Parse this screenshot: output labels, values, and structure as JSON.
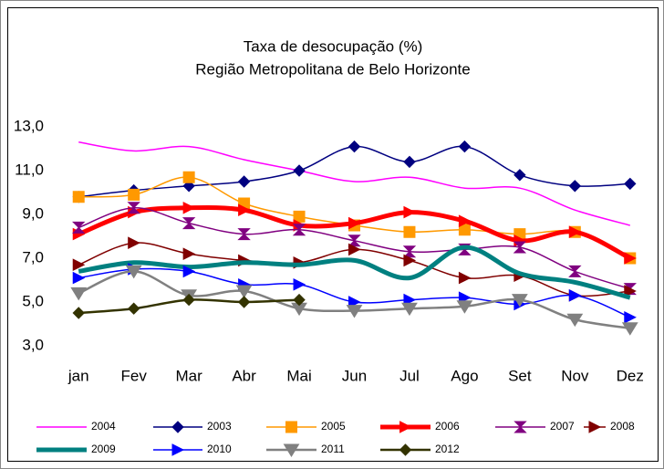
{
  "chart_data": {
    "type": "line",
    "title": "Taxa de desocupação (%)",
    "subtitle": "Região Metropolitana de Belo Horizonte",
    "categories": [
      "jan",
      "Fev",
      "Mar",
      "Abr",
      "Mai",
      "Jun",
      "Jul",
      "Ago",
      "Set",
      "Nov",
      "Dez"
    ],
    "ylim": [
      3,
      13
    ],
    "yticks": [
      {
        "value": 3,
        "label": "3,0"
      },
      {
        "value": 5,
        "label": "5,0"
      },
      {
        "value": 7,
        "label": "7,0"
      },
      {
        "value": 9,
        "label": "9,0"
      },
      {
        "value": 11,
        "label": "11,0"
      },
      {
        "value": 13,
        "label": "13,0"
      }
    ],
    "grid": false,
    "smooth": true,
    "legend": "bottom",
    "series": [
      {
        "name": "2004",
        "color": "#ff00ff",
        "marker": "none",
        "width": 1.5,
        "values": [
          12.3,
          11.9,
          12.1,
          11.5,
          11.0,
          10.5,
          10.7,
          10.2,
          10.2,
          9.2,
          8.5
        ]
      },
      {
        "name": "2003",
        "color": "#000080",
        "marker": "diamond",
        "width": 1.5,
        "values": [
          9.8,
          10.1,
          10.3,
          10.5,
          11.0,
          12.1,
          11.4,
          12.1,
          10.8,
          10.3,
          10.4
        ]
      },
      {
        "name": "2005",
        "color": "#ff9900",
        "marker": "square",
        "width": 1.5,
        "values": [
          9.8,
          9.9,
          10.7,
          9.5,
          8.9,
          8.5,
          8.2,
          8.3,
          8.1,
          8.2,
          7.0
        ]
      },
      {
        "name": "2006",
        "color": "#ff0000",
        "marker": "triangle-right",
        "width": 5,
        "values": [
          8.1,
          9.1,
          9.3,
          9.2,
          8.5,
          8.6,
          9.1,
          8.7,
          7.8,
          8.2,
          7.0
        ]
      },
      {
        "name": "2007",
        "color": "#800080",
        "marker": "hourglass",
        "width": 1.5,
        "values": [
          8.4,
          9.3,
          8.6,
          8.1,
          8.3,
          7.8,
          7.3,
          7.4,
          7.5,
          6.4,
          5.6
        ]
      },
      {
        "name": "2008",
        "color": "#800000",
        "marker": "triangle-right",
        "width": 1.5,
        "values": [
          6.7,
          7.7,
          7.2,
          6.9,
          6.8,
          7.4,
          6.9,
          6.1,
          6.2,
          5.3,
          5.5
        ]
      },
      {
        "name": "2009",
        "color": "#008080",
        "marker": "none",
        "width": 5,
        "values": [
          6.4,
          6.8,
          6.6,
          6.8,
          6.7,
          6.9,
          6.1,
          7.5,
          6.3,
          5.9,
          5.2
        ]
      },
      {
        "name": "2010",
        "color": "#0000ff",
        "marker": "triangle-right",
        "width": 1.5,
        "values": [
          6.1,
          6.5,
          6.4,
          5.8,
          5.8,
          5.0,
          5.1,
          5.2,
          4.9,
          5.3,
          4.3
        ]
      },
      {
        "name": "2011",
        "color": "#808080",
        "marker": "triangle-down",
        "width": 2.5,
        "values": [
          5.4,
          6.4,
          5.3,
          5.5,
          4.7,
          4.6,
          4.7,
          4.8,
          5.1,
          4.2,
          3.8
        ]
      },
      {
        "name": "2012",
        "color": "#333300",
        "marker": "diamond",
        "width": 2.5,
        "values": [
          4.5,
          4.7,
          5.1,
          5.0,
          5.1,
          null,
          null,
          null,
          null,
          null,
          null
        ]
      }
    ]
  }
}
